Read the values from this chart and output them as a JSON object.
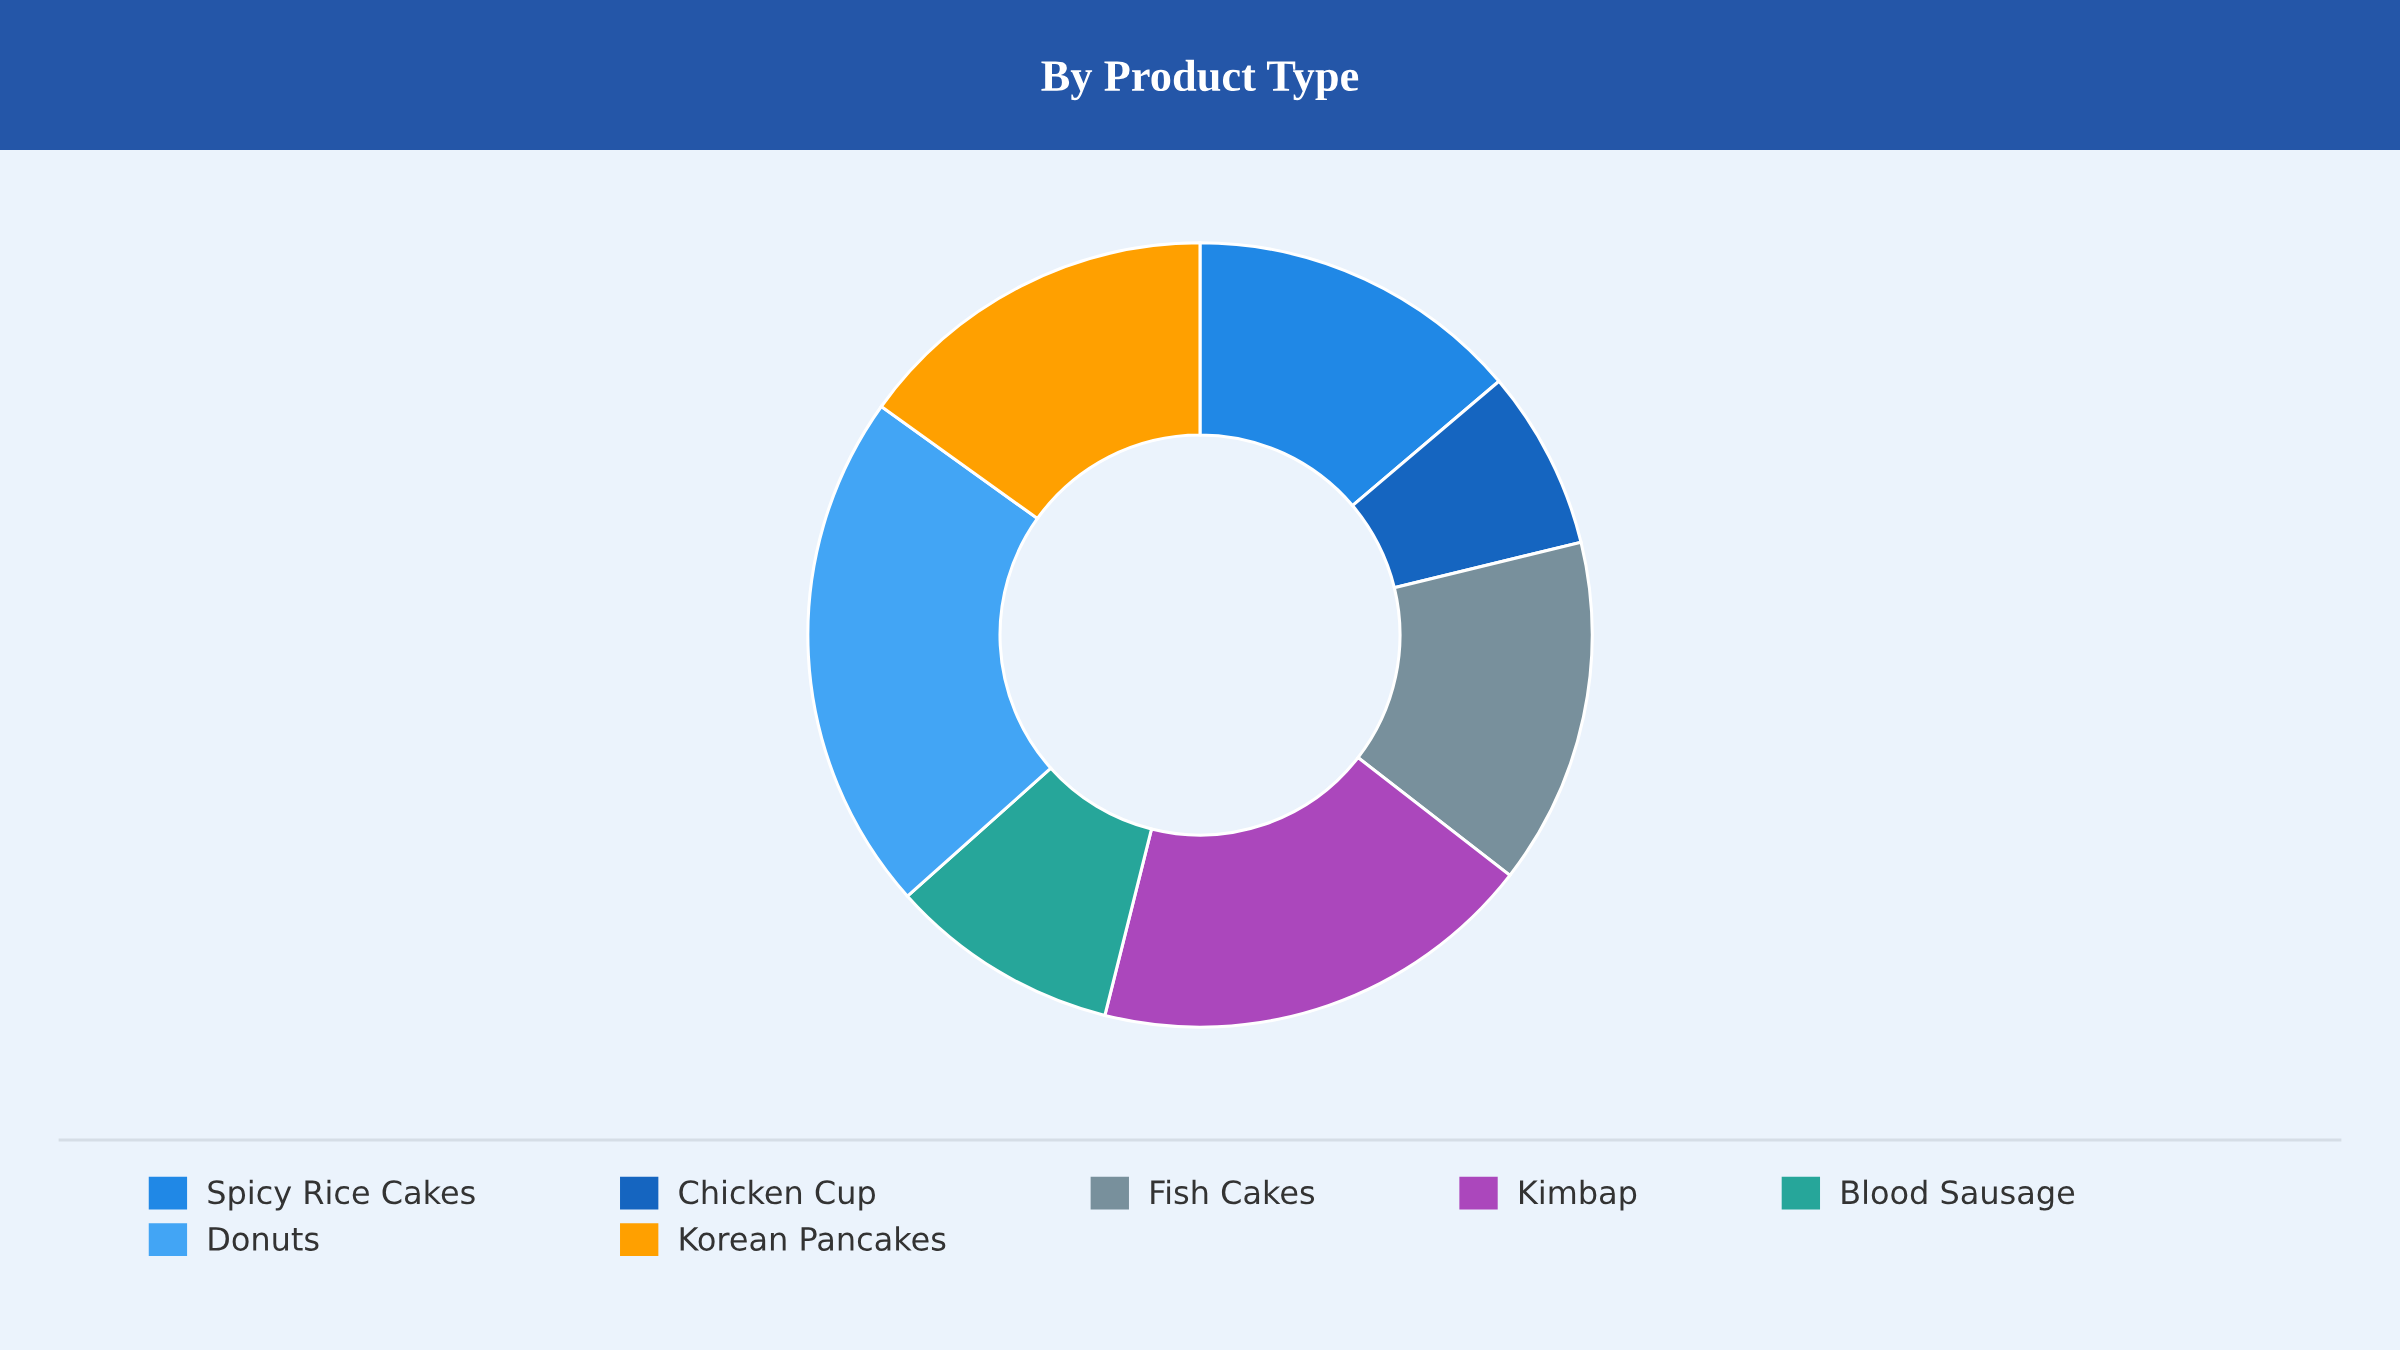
{
  "chart_data": {
    "type": "donut",
    "title": "By Product Type",
    "categories": [
      "Spicy Rice Cakes",
      "Chicken Cup",
      "Fish Cakes",
      "Kimbap",
      "Blood Sausage",
      "Donuts",
      "Korean Pancakes"
    ],
    "values": [
      13.8,
      7.4,
      14.3,
      18.4,
      9.5,
      21.5,
      15.1
    ],
    "colors": [
      "#2088e6",
      "#1565c0",
      "#78909c",
      "#ab47bc",
      "#26a69a",
      "#42a5f5",
      "#ffa000"
    ],
    "legend": "bottom"
  }
}
